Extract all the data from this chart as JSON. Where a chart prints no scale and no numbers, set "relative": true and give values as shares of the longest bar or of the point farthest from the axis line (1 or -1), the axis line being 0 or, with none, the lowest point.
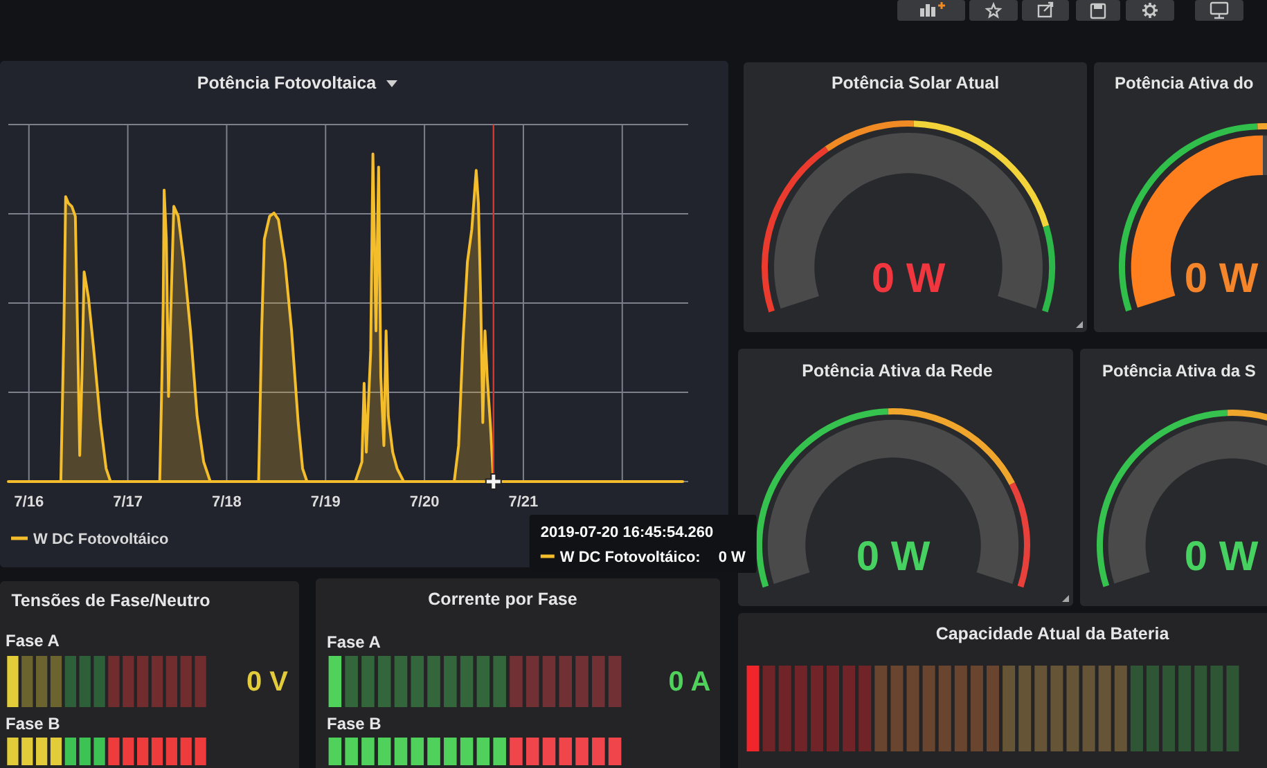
{
  "chart_data": [
    {
      "type": "area",
      "title": "Potência Fotovoltaica",
      "relative": true,
      "x": [
        "2019-07-15T19:00",
        "2019-07-16T07:45",
        "2019-07-16T08:29",
        "2019-07-16T08:55",
        "2019-07-16T09:34",
        "2019-07-16T10:25",
        "2019-07-16T11:16",
        "2019-07-16T11:48",
        "2019-07-16T12:20",
        "2019-07-16T12:52",
        "2019-07-16T13:24",
        "2019-07-16T14:28",
        "2019-07-16T15:45",
        "2019-07-16T17:21",
        "2019-07-16T18:44",
        "2019-07-16T19:48",
        "2019-07-17T07:45",
        "2019-07-17T08:17",
        "2019-07-17T08:36",
        "2019-07-17T08:49",
        "2019-07-17T09:21",
        "2019-07-17T09:53",
        "2019-07-17T10:25",
        "2019-07-17T11:10",
        "2019-07-17T12:14",
        "2019-07-17T13:37",
        "2019-07-17T15:13",
        "2019-07-17T16:49",
        "2019-07-17T18:25",
        "2019-07-17T20:01",
        "2019-07-18T07:45",
        "2019-07-18T08:29",
        "2019-07-18T09:08",
        "2019-07-18T10:25",
        "2019-07-18T11:29",
        "2019-07-18T12:33",
        "2019-07-18T14:09",
        "2019-07-18T15:45",
        "2019-07-18T17:21",
        "2019-07-18T18:25",
        "2019-07-18T19:29",
        "2019-07-19T07:13",
        "2019-07-19T08:49",
        "2019-07-19T09:21",
        "2019-07-19T09:53",
        "2019-07-19T10:57",
        "2019-07-19T11:29",
        "2019-07-19T12:14",
        "2019-07-19T12:52",
        "2019-07-19T13:24",
        "2019-07-19T14:09",
        "2019-07-19T14:41",
        "2019-07-19T15:13",
        "2019-07-19T16:17",
        "2019-07-19T17:21",
        "2019-07-19T18:57",
        "2019-07-20T07:13",
        "2019-07-20T08:17",
        "2019-07-20T09:21",
        "2019-07-20T10:25",
        "2019-07-20T11:29",
        "2019-07-20T12:33",
        "2019-07-20T13:05",
        "2019-07-20T13:37",
        "2019-07-20T14:09",
        "2019-07-20T14:41",
        "2019-07-20T15:13",
        "2019-07-20T15:58",
        "2019-07-20T16:45",
        "2019-07-22T14:40"
      ],
      "series": [
        {
          "name": "W DC Fotovoltáico",
          "color": "#f4bd2c",
          "values": [
            0,
            0,
            0.46,
            0.87,
            0.85,
            0.84,
            0.81,
            0.46,
            0.08,
            0.32,
            0.64,
            0.56,
            0.4,
            0.18,
            0.04,
            0,
            0,
            0.32,
            0.55,
            0.89,
            0.74,
            0.26,
            0.51,
            0.84,
            0.81,
            0.67,
            0.46,
            0.2,
            0.06,
            0,
            0,
            0.46,
            0.74,
            0.81,
            0.82,
            0.8,
            0.67,
            0.46,
            0.18,
            0.04,
            0,
            0,
            0.06,
            0.3,
            0.09,
            0.4,
            1,
            0.46,
            0.96,
            0.32,
            0.11,
            0.46,
            0.2,
            0.09,
            0.04,
            0,
            0,
            0.11,
            0.43,
            0.67,
            0.77,
            0.95,
            0.85,
            0.57,
            0.18,
            0.46,
            0.32,
            0.18,
            0,
            0
          ]
        }
      ],
      "xlim": [
        "2019-07-15T19:00",
        "2019-07-22T16:00"
      ],
      "xticks": [
        {
          "value": "2019-07-16",
          "label": "7/16"
        },
        {
          "value": "2019-07-17",
          "label": "7/17"
        },
        {
          "value": "2019-07-18",
          "label": "7/18"
        },
        {
          "value": "2019-07-19",
          "label": "7/19"
        },
        {
          "value": "2019-07-20",
          "label": "7/20"
        },
        {
          "value": "2019-07-21",
          "label": "7/21"
        },
        {
          "value": "2019-07-22",
          "label": null
        }
      ],
      "grid": true,
      "legend": "bottom left",
      "ref_lines": [
        {
          "axis": "x",
          "value": "2019-07-20T16:45",
          "color": "#d8362b"
        }
      ],
      "annotations": [
        "2019-07-20 16:45:54.260",
        "W DC Fotovoltáico:",
        "0 W"
      ]
    },
    {
      "type": "other",
      "title": "Potência Solar Atual",
      "annotations": [
        "0 W"
      ]
    },
    {
      "type": "other",
      "title": "Potência Ativa do",
      "annotations": [
        "0 W"
      ]
    },
    {
      "type": "other",
      "title": "Potência Ativa da Rede",
      "annotations": [
        "0 W"
      ]
    },
    {
      "type": "other",
      "title": "Potência Ativa da S",
      "annotations": [
        "0 W"
      ]
    },
    {
      "type": "other",
      "title": "Tensões de Fase/Neutro",
      "annotations": [
        "Fase A",
        "0 V",
        "Fase B"
      ]
    },
    {
      "type": "other",
      "title": "Corrente por Fase",
      "annotations": [
        "Fase A",
        "0 A",
        "Fase B"
      ]
    },
    {
      "type": "other",
      "title": "Capacidade Atual da Bateria"
    }
  ]
}
